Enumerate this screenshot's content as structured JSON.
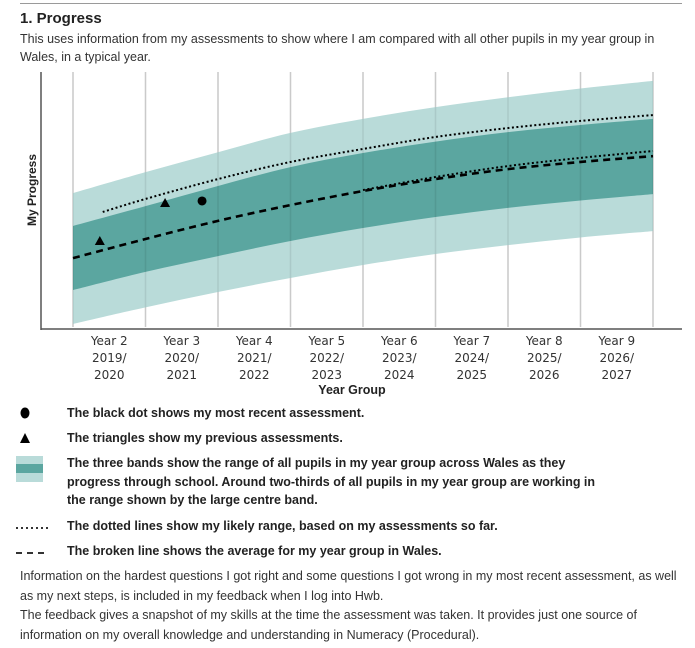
{
  "section": {
    "title": "1. Progress",
    "subtitle": "This uses information from my assessments to show where I am compared with all other pupils in my year group in Wales, in a typical year."
  },
  "colors": {
    "outer_band": "#b9dbd9",
    "inner_band": "#5ba6a0",
    "gridline": "#dcdcdc",
    "axis": "#555555",
    "marker": "#000000"
  },
  "chart_data": {
    "type": "area",
    "title": "",
    "xlabel": "Year Group",
    "ylabel": "My Progress",
    "xlim": [
      0,
      8
    ],
    "ylim": [
      0,
      100
    ],
    "grid": "vertical",
    "categories": [
      [
        "Year 2",
        "2019/",
        "2020"
      ],
      [
        "Year 3",
        "2020/",
        "2021"
      ],
      [
        "Year 4",
        "2021/",
        "2022"
      ],
      [
        "Year 5",
        "2022/",
        "2023"
      ],
      [
        "Year 6",
        "2023/",
        "2024"
      ],
      [
        "Year 7",
        "2024/",
        "2025"
      ],
      [
        "Year 8",
        "2025/",
        "2026"
      ],
      [
        "Year 9",
        "2026/",
        "2027"
      ]
    ],
    "bands": {
      "x": [
        0,
        1,
        2,
        3,
        4,
        5,
        6,
        7,
        8
      ],
      "outer_upper": [
        53.3,
        61.5,
        69.3,
        76.9,
        82.4,
        87.0,
        90.9,
        94.3,
        97.3
      ],
      "inner_upper": [
        40.4,
        48.2,
        56.1,
        63.5,
        69.0,
        73.5,
        77.2,
        80.0,
        82.4
      ],
      "inner_lower": [
        15.3,
        22.4,
        28.6,
        34.5,
        39.6,
        43.9,
        47.5,
        50.4,
        52.9
      ],
      "outer_lower": [
        2.0,
        8.5,
        14.5,
        20.0,
        25.1,
        29.4,
        32.9,
        35.9,
        38.4
      ]
    },
    "series": [
      {
        "name": "Average for my year group in Wales",
        "style": "dashed",
        "x": [
          0,
          1,
          2,
          3,
          4,
          5,
          6,
          7,
          8
        ],
        "values": [
          27.8,
          35.3,
          42.4,
          48.6,
          54.1,
          58.8,
          62.7,
          65.5,
          67.8
        ]
      },
      {
        "name": "Likely range upper",
        "style": "dotted",
        "x": [
          0.41,
          1,
          2,
          3,
          4,
          5,
          6,
          7,
          8
        ],
        "values": [
          45.9,
          51.0,
          58.8,
          65.5,
          70.6,
          75.3,
          78.8,
          81.6,
          83.9
        ]
      },
      {
        "name": "Likely range lower",
        "style": "dotted",
        "x": [
          4,
          5,
          6,
          7,
          8
        ],
        "values": [
          54.5,
          59.6,
          63.9,
          67.1,
          69.8
        ]
      }
    ],
    "points": [
      {
        "name": "Previous assessment",
        "marker": "triangle",
        "x": 0.37,
        "y": 34.5
      },
      {
        "name": "Previous assessment",
        "marker": "triangle",
        "x": 1.27,
        "y": 49.4
      },
      {
        "name": "Most recent assessment",
        "marker": "circle",
        "x": 1.78,
        "y": 50.2
      }
    ]
  },
  "legend": [
    {
      "symbol": "dot",
      "text": "The black dot shows my most recent assessment."
    },
    {
      "symbol": "triangle",
      "text": "The triangles show my previous assessments."
    },
    {
      "symbol": "bands",
      "text": "The three bands show the range of all pupils in my year group across Wales as they progress through school. Around two-thirds of all pupils in my year group are working in the range shown by the large centre band."
    },
    {
      "symbol": "dotted-line",
      "text": "The dotted lines show my likely range, based on my assessments so far."
    },
    {
      "symbol": "dashed-line",
      "text": "The broken line shows the average for my year group in Wales."
    }
  ],
  "footer": {
    "paragraph_1": "Information on the hardest questions I got right and some questions I got wrong in my most recent assessment, as well as my next steps, is included in my feedback when I log into Hwb.",
    "paragraph_2": "The feedback gives a snapshot of my skills at the time the assessment was taken. It provides just one source of information on my overall knowledge and understanding in Numeracy (Procedural)."
  }
}
